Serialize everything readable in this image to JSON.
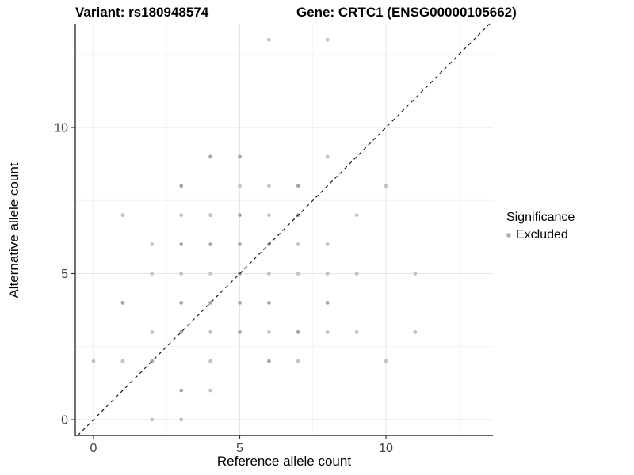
{
  "chart_data": {
    "type": "scatter",
    "title_variant": "Variant: rs180948574",
    "title_gene": "Gene: CRTC1 (ENSG00000105662)",
    "xlabel": "Reference allele count",
    "ylabel": "Alternative allele count",
    "x_ticks": [
      0,
      5,
      10
    ],
    "y_ticks": [
      0,
      5,
      10
    ],
    "x_minor_ticks": [
      2.5,
      7.5,
      12.5
    ],
    "y_minor_ticks": [
      2.5,
      7.5,
      12.5
    ],
    "xlim": [
      -0.62,
      13.66
    ],
    "ylim": [
      -0.54,
      13.55
    ],
    "grid": true,
    "identity_line": {
      "style": "dashed",
      "slope": 1,
      "intercept": 0
    },
    "legend": {
      "position": "right",
      "title": "Significance",
      "items": [
        {
          "label": "Excluded",
          "color": "#b5b5b5"
        }
      ]
    },
    "points_format": "[reference_allele_count, alternative_allele_count, shade l=light d=dark]",
    "points": [
      [
        6,
        13,
        "l"
      ],
      [
        8,
        13,
        "l"
      ],
      [
        4,
        9,
        "d"
      ],
      [
        5,
        9,
        "d"
      ],
      [
        8,
        9,
        "l"
      ],
      [
        3,
        8,
        "d"
      ],
      [
        5,
        8,
        "l"
      ],
      [
        6,
        8,
        "l"
      ],
      [
        7,
        8,
        "d"
      ],
      [
        10,
        8,
        "l"
      ],
      [
        1,
        7,
        "l"
      ],
      [
        3,
        7,
        "l"
      ],
      [
        4,
        7,
        "l"
      ],
      [
        5,
        7,
        "d"
      ],
      [
        6,
        7,
        "l"
      ],
      [
        7,
        7,
        "d"
      ],
      [
        9,
        7,
        "l"
      ],
      [
        2,
        6,
        "l"
      ],
      [
        3,
        6,
        "d"
      ],
      [
        4,
        6,
        "d"
      ],
      [
        5,
        6,
        "d"
      ],
      [
        6,
        6,
        "d"
      ],
      [
        7,
        6,
        "l"
      ],
      [
        8,
        6,
        "l"
      ],
      [
        2,
        5,
        "l"
      ],
      [
        3,
        5,
        "l"
      ],
      [
        4,
        5,
        "l"
      ],
      [
        5,
        5,
        "d"
      ],
      [
        6,
        5,
        "l"
      ],
      [
        7,
        5,
        "l"
      ],
      [
        8,
        5,
        "l"
      ],
      [
        9,
        5,
        "l"
      ],
      [
        11,
        5,
        "l"
      ],
      [
        1,
        4,
        "d"
      ],
      [
        3,
        4,
        "d"
      ],
      [
        4,
        4,
        "d"
      ],
      [
        5,
        4,
        "d"
      ],
      [
        6,
        4,
        "d"
      ],
      [
        8,
        4,
        "d"
      ],
      [
        2,
        3,
        "l"
      ],
      [
        3,
        3,
        "d"
      ],
      [
        4,
        3,
        "l"
      ],
      [
        5,
        3,
        "d"
      ],
      [
        6,
        3,
        "l"
      ],
      [
        7,
        3,
        "d"
      ],
      [
        8,
        3,
        "l"
      ],
      [
        9,
        3,
        "l"
      ],
      [
        11,
        3,
        "l"
      ],
      [
        0,
        2,
        "l"
      ],
      [
        1,
        2,
        "l"
      ],
      [
        2,
        2,
        "d"
      ],
      [
        4,
        2,
        "l"
      ],
      [
        6,
        2,
        "d"
      ],
      [
        7,
        2,
        "l"
      ],
      [
        10,
        2,
        "l"
      ],
      [
        3,
        1,
        "d"
      ],
      [
        4,
        1,
        "l"
      ],
      [
        2,
        0,
        "l"
      ],
      [
        3,
        0,
        "l"
      ]
    ],
    "colors": {
      "point_light": "#c3c3c3",
      "point_dark": "#a5a5a5",
      "grid_major": "#e3e3e3",
      "grid_minor": "#efefef",
      "axis_line": "#333333",
      "tick_label": "#404040",
      "identity_line": "#1a1a1a",
      "background": "#ffffff"
    }
  }
}
